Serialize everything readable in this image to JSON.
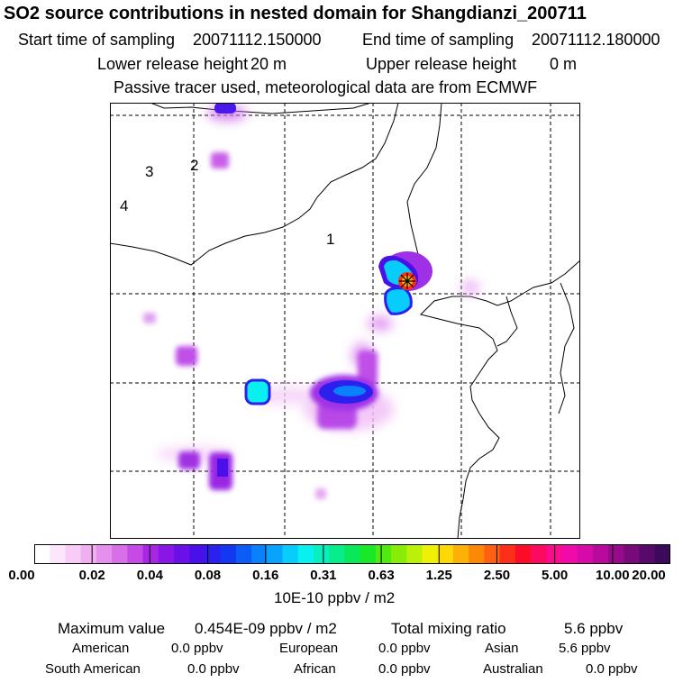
{
  "header": {
    "title": "SO2 source contributions in nested domain for Shangdianzi_200711",
    "start_label": "Start time of sampling",
    "start_value": "20071112.150000",
    "end_label": "End time of sampling",
    "end_value": "20071112.180000",
    "lower_label": "Lower release height",
    "lower_value": "20 m",
    "upper_label": "Upper release height",
    "upper_value": "0 m",
    "tracer_note": "Passive tracer used, meteorological data are from ECMWF"
  },
  "map": {
    "region_labels": [
      "1",
      "2",
      "3",
      "4"
    ],
    "station_marker": "Shangdianzi"
  },
  "colorbar": {
    "colors": [
      "#ffffff",
      "#fbe6fb",
      "#f7ccf7",
      "#f0b0f0",
      "#e690ee",
      "#d86ee8",
      "#c64ae6",
      "#a826e4",
      "#8a16e6",
      "#6a10e8",
      "#4a10ea",
      "#2c20ee",
      "#1438f2",
      "#0c5cf6",
      "#0a80fa",
      "#08a4fc",
      "#08ccfc",
      "#08f0f0",
      "#08f0c0",
      "#08ec8c",
      "#08e858",
      "#18e828",
      "#50ea10",
      "#88ec08",
      "#bcf008",
      "#eef008",
      "#fcd808",
      "#fcb008",
      "#fc8808",
      "#fc6010",
      "#fc3018",
      "#fc0c28",
      "#fc0a60",
      "#fc0a90",
      "#f00aa8",
      "#d60aa8",
      "#b80a9c",
      "#980a8c",
      "#780a7a",
      "#580a6a",
      "#3c0a5a"
    ],
    "tick_labels": [
      "0.00",
      "0.02",
      "0.04",
      "0.08",
      "0.16",
      "0.31",
      "0.63",
      "1.25",
      "2.50",
      "5.00",
      "10.00",
      "20.00"
    ],
    "unit": "10E-10 ppbv / m2"
  },
  "summary": {
    "max_label": "Maximum value",
    "max_value": "0.454E-09 ppbv / m2",
    "total_label": "Total mixing ratio",
    "total_value": "5.6 ppbv",
    "sources": [
      {
        "name": "American",
        "value": "0.0 ppbv"
      },
      {
        "name": "European",
        "value": "0.0 ppbv"
      },
      {
        "name": "Asian",
        "value": "5.6 ppbv"
      },
      {
        "name": "South American",
        "value": "0.0 ppbv"
      },
      {
        "name": "African",
        "value": "0.0 ppbv"
      },
      {
        "name": "Australian",
        "value": "0.0 ppbv"
      }
    ]
  }
}
